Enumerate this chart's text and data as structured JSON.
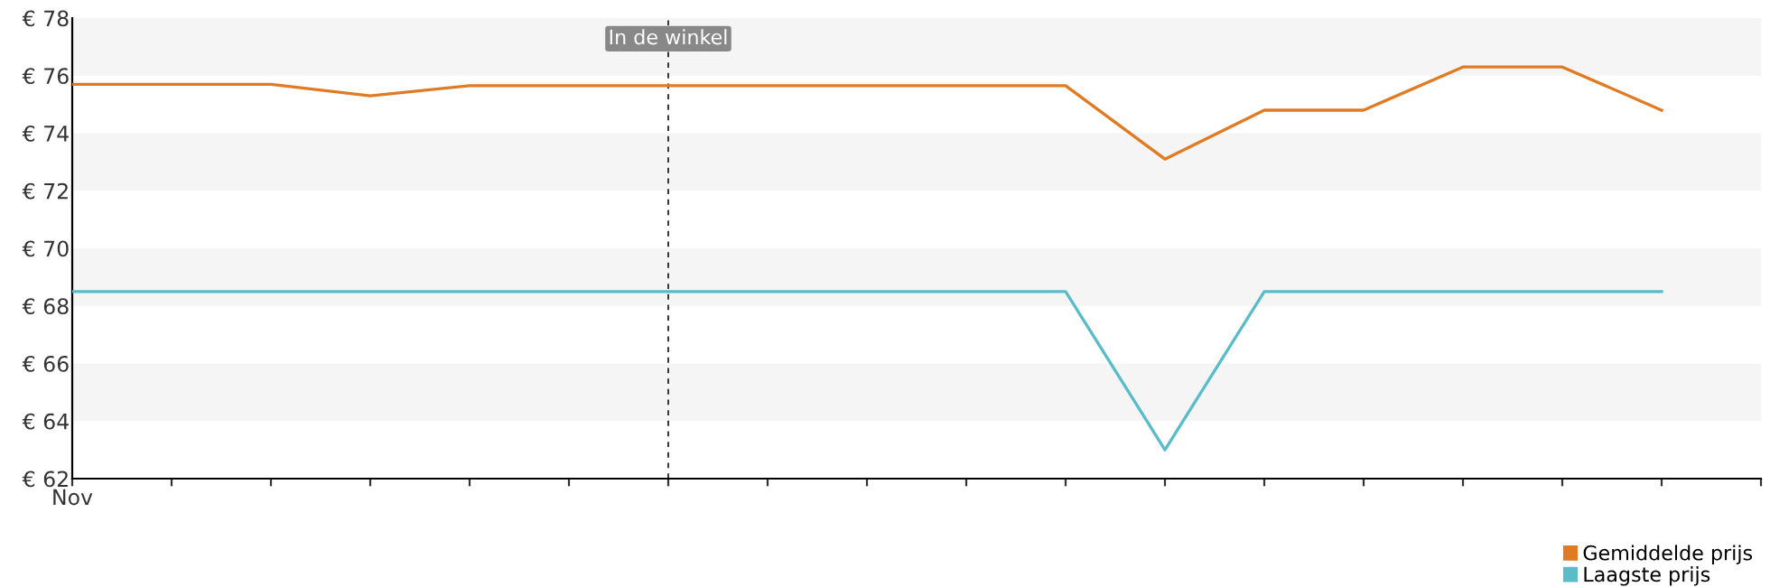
{
  "chart_data": {
    "type": "line",
    "categories": [
      "Nov",
      null,
      null,
      null,
      null,
      null,
      null,
      null,
      null,
      null,
      null,
      null,
      null,
      null,
      null,
      null,
      null,
      null
    ],
    "series": [
      {
        "name": "Gemiddelde prijs",
        "color": "#e07b24",
        "values": [
          75.7,
          75.7,
          75.7,
          75.3,
          75.65,
          75.65,
          75.65,
          75.65,
          75.65,
          75.65,
          75.65,
          73.1,
          74.8,
          74.8,
          76.3,
          76.3,
          74.8,
          null
        ]
      },
      {
        "name": "Laagste prijs",
        "color": "#5bbcc9",
        "values": [
          68.5,
          68.5,
          68.5,
          68.5,
          68.5,
          68.5,
          68.5,
          68.5,
          68.5,
          68.5,
          68.5,
          63.0,
          68.5,
          68.5,
          68.5,
          68.5,
          68.5,
          null
        ]
      }
    ],
    "ylim": [
      62,
      78
    ],
    "yticks": [
      {
        "value": 62,
        "label": "€ 62"
      },
      {
        "value": 64,
        "label": "€ 64"
      },
      {
        "value": 66,
        "label": "€ 66"
      },
      {
        "value": 68,
        "label": "€ 68"
      },
      {
        "value": 70,
        "label": "€ 70"
      },
      {
        "value": 72,
        "label": "€ 72"
      },
      {
        "value": 74,
        "label": "€ 74"
      },
      {
        "value": 76,
        "label": "€ 76"
      },
      {
        "value": 78,
        "label": "€ 78"
      }
    ],
    "bands": [
      {
        "axis": "y",
        "from": 64,
        "to": 66,
        "color": "#f5f5f5"
      },
      {
        "axis": "y",
        "from": 68,
        "to": 70,
        "color": "#f5f5f5"
      },
      {
        "axis": "y",
        "from": 72,
        "to": 74,
        "color": "#f5f5f5"
      },
      {
        "axis": "y",
        "from": 76,
        "to": 78,
        "color": "#f5f5f5"
      }
    ],
    "annotations": [
      "In de winkel"
    ],
    "legend": "bottom right",
    "marker": "none",
    "line_style": "solid"
  }
}
